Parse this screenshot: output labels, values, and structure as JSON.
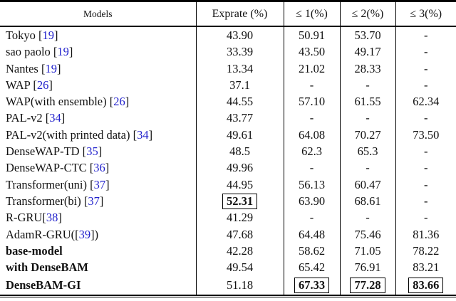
{
  "page": {
    "background": "#ffffff",
    "text_color": "#111111",
    "cite_color": "#2222cc",
    "rule_color": "#000000"
  },
  "table": {
    "header": {
      "models": "Models",
      "cols": [
        "Exprate (%)",
        "≤ 1(%)",
        "≤ 2(%)",
        "≤ 3(%)"
      ]
    },
    "rows": [
      {
        "pre": "Tokyo [",
        "cite": "19",
        "post": "]",
        "bold_model": false,
        "cells": [
          {
            "t": "43.90"
          },
          {
            "t": "50.91"
          },
          {
            "t": "53.70"
          },
          {
            "t": "-"
          }
        ]
      },
      {
        "pre": "sao paolo [",
        "cite": "19",
        "post": "]",
        "bold_model": false,
        "cells": [
          {
            "t": "33.39"
          },
          {
            "t": "43.50"
          },
          {
            "t": "49.17"
          },
          {
            "t": "-"
          }
        ]
      },
      {
        "pre": "Nantes [",
        "cite": "19",
        "post": "]",
        "bold_model": false,
        "cells": [
          {
            "t": "13.34"
          },
          {
            "t": "21.02"
          },
          {
            "t": "28.33"
          },
          {
            "t": "-"
          }
        ]
      },
      {
        "pre": "WAP [",
        "cite": "26",
        "post": "]",
        "bold_model": false,
        "cells": [
          {
            "t": "37.1"
          },
          {
            "t": "-"
          },
          {
            "t": "-"
          },
          {
            "t": "-"
          }
        ]
      },
      {
        "pre": "WAP(with ensemble) [",
        "cite": "26",
        "post": "]",
        "bold_model": false,
        "cells": [
          {
            "t": "44.55"
          },
          {
            "t": "57.10"
          },
          {
            "t": "61.55"
          },
          {
            "t": "62.34"
          }
        ]
      },
      {
        "pre": "PAL-v2 [",
        "cite": "34",
        "post": "]",
        "bold_model": false,
        "cells": [
          {
            "t": "43.77"
          },
          {
            "t": "-"
          },
          {
            "t": "-"
          },
          {
            "t": "-"
          }
        ]
      },
      {
        "pre": "PAL-v2(with printed data) [",
        "cite": "34",
        "post": "]",
        "bold_model": false,
        "cells": [
          {
            "t": "49.61"
          },
          {
            "t": "64.08"
          },
          {
            "t": "70.27"
          },
          {
            "t": "73.50"
          }
        ]
      },
      {
        "pre": "DenseWAP-TD [",
        "cite": "35",
        "post": "]",
        "bold_model": false,
        "cells": [
          {
            "t": "48.5"
          },
          {
            "t": "62.3"
          },
          {
            "t": "65.3"
          },
          {
            "t": "-"
          }
        ]
      },
      {
        "pre": "DenseWAP-CTC [",
        "cite": "36",
        "post": "]",
        "bold_model": false,
        "cells": [
          {
            "t": "49.96"
          },
          {
            "t": "-"
          },
          {
            "t": "-"
          },
          {
            "t": "-"
          }
        ]
      },
      {
        "pre": "Transformer(uni) [",
        "cite": "37",
        "post": "]",
        "bold_model": false,
        "cells": [
          {
            "t": "44.95"
          },
          {
            "t": "56.13"
          },
          {
            "t": "60.47"
          },
          {
            "t": "-"
          }
        ]
      },
      {
        "pre": "Transformer(bi) [",
        "cite": "37",
        "post": "]",
        "bold_model": false,
        "cells": [
          {
            "t": "52.31",
            "bold": true,
            "boxed": true
          },
          {
            "t": "63.90"
          },
          {
            "t": "68.61"
          },
          {
            "t": "-"
          }
        ]
      },
      {
        "pre": "R-GRU[",
        "cite": "38",
        "post": "]",
        "bold_model": false,
        "cells": [
          {
            "t": "41.29"
          },
          {
            "t": "-"
          },
          {
            "t": "-"
          },
          {
            "t": "-"
          }
        ]
      },
      {
        "pre": "AdamR-GRU([",
        "cite": "39",
        "post": "])",
        "bold_model": false,
        "cells": [
          {
            "t": "47.68"
          },
          {
            "t": "64.48"
          },
          {
            "t": "75.46"
          },
          {
            "t": "81.36"
          }
        ]
      },
      {
        "pre": "base-model",
        "cite": "",
        "post": "",
        "bold_model": true,
        "cells": [
          {
            "t": "42.28"
          },
          {
            "t": "58.62"
          },
          {
            "t": "71.05"
          },
          {
            "t": "78.22"
          }
        ]
      },
      {
        "pre": "with DenseBAM",
        "cite": "",
        "post": "",
        "bold_model": true,
        "cells": [
          {
            "t": "49.54"
          },
          {
            "t": "65.42"
          },
          {
            "t": "76.91"
          },
          {
            "t": "83.21"
          }
        ]
      },
      {
        "pre": "DenseBAM-GI",
        "cite": "",
        "post": "",
        "bold_model": true,
        "tall": true,
        "cells": [
          {
            "t": "51.18"
          },
          {
            "t": "67.33",
            "bold": true,
            "boxed": true
          },
          {
            "t": "77.28",
            "bold": true,
            "boxed": true
          },
          {
            "t": "83.66",
            "bold": true,
            "boxed": true
          }
        ]
      }
    ]
  }
}
